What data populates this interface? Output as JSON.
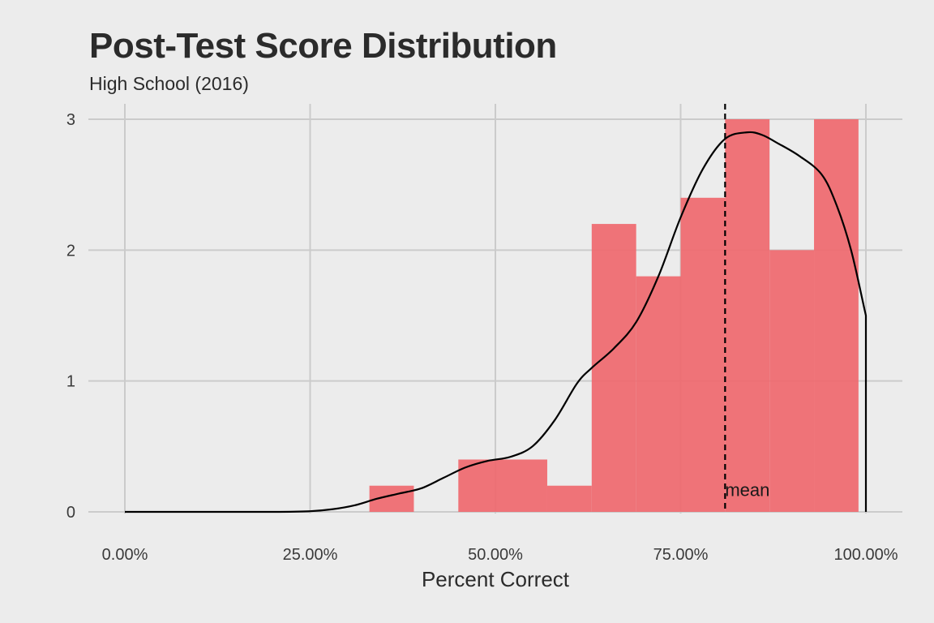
{
  "chart_data": {
    "type": "bar",
    "title": "Post-Test Score Distribution",
    "subtitle": "High School (2016)",
    "xlabel": "Percent Correct",
    "ylabel": "",
    "xlim": [
      -0.025,
      1.025
    ],
    "ylim": [
      0,
      3.05
    ],
    "x_ticks": [
      0,
      0.25,
      0.5,
      0.75,
      1.0
    ],
    "x_tick_labels": [
      "0.00%",
      "25.00%",
      "50.00%",
      "75.00%",
      "100.00%"
    ],
    "y_ticks": [
      0,
      1,
      2,
      3
    ],
    "y_tick_labels": [
      "0",
      "1",
      "2",
      "3"
    ],
    "grid": true,
    "bar_color": "#f0666b",
    "bins": [
      {
        "x0": 0.33,
        "x1": 0.39,
        "value": 0.2
      },
      {
        "x0": 0.45,
        "x1": 0.57,
        "value": 0.4
      },
      {
        "x0": 0.57,
        "x1": 0.63,
        "value": 0.2
      },
      {
        "x0": 0.63,
        "x1": 0.69,
        "value": 2.2
      },
      {
        "x0": 0.69,
        "x1": 0.75,
        "value": 1.8
      },
      {
        "x0": 0.75,
        "x1": 0.81,
        "value": 2.4
      },
      {
        "x0": 0.81,
        "x1": 0.87,
        "value": 3.0
      },
      {
        "x0": 0.87,
        "x1": 0.93,
        "value": 2.0
      },
      {
        "x0": 0.93,
        "x1": 0.99,
        "value": 3.0
      }
    ],
    "density": {
      "x": [
        0.0,
        0.1,
        0.2,
        0.25,
        0.28,
        0.31,
        0.34,
        0.37,
        0.4,
        0.43,
        0.46,
        0.49,
        0.52,
        0.55,
        0.58,
        0.61,
        0.63,
        0.66,
        0.69,
        0.72,
        0.75,
        0.78,
        0.81,
        0.84,
        0.86,
        0.88,
        0.91,
        0.94,
        0.96,
        0.98,
        1.0,
        1.0
      ],
      "y": [
        0.0,
        0.0,
        0.0,
        0.005,
        0.02,
        0.05,
        0.1,
        0.14,
        0.18,
        0.26,
        0.34,
        0.39,
        0.42,
        0.5,
        0.7,
        0.98,
        1.1,
        1.25,
        1.45,
        1.8,
        2.25,
        2.62,
        2.85,
        2.9,
        2.88,
        2.82,
        2.72,
        2.58,
        2.35,
        2.0,
        1.5,
        0.0
      ]
    },
    "mean_line": {
      "x": 0.81,
      "label": "mean",
      "label_y": 0.12
    }
  }
}
